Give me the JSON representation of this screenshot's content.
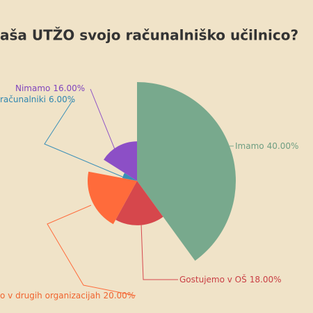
{
  "chart_data": {
    "type": "pie",
    "title": "aša UTŽO svojo računalniško učilnico?",
    "categories": [
      "Imamo",
      "Gostujemo v OŠ",
      "o v drugih organizacijah",
      "računalniki",
      "Nimamo"
    ],
    "values": [
      40,
      18,
      20,
      6,
      16
    ],
    "value_labels": [
      "40.00%",
      "18.00%",
      "20.00%",
      "6.00%",
      "16.00%"
    ],
    "colors": [
      "#78a98d",
      "#d6474c",
      "#ff6b3b",
      "#3a8fb7",
      "#8c4fc6"
    ],
    "label_colors": [
      "#6f9e82",
      "#c93e44",
      "#f0642f",
      "#2f86b0",
      "#8045bd"
    ]
  }
}
